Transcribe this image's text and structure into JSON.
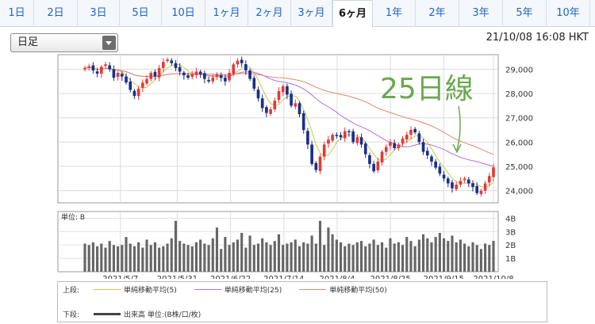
{
  "tabs": [
    {
      "label": "1日",
      "active": false
    },
    {
      "label": "2日",
      "active": false
    },
    {
      "label": "3日",
      "active": false
    },
    {
      "label": "5日",
      "active": false
    },
    {
      "label": "10日",
      "active": false
    },
    {
      "label": "1ヶ月",
      "active": false
    },
    {
      "label": "2ヶ月",
      "active": false
    },
    {
      "label": "3ヶ月",
      "active": false
    },
    {
      "label": "6ヶ月",
      "active": true
    },
    {
      "label": "1年",
      "active": false
    },
    {
      "label": "2年",
      "active": false
    },
    {
      "label": "3年",
      "active": false
    },
    {
      "label": "5年",
      "active": false
    },
    {
      "label": "10年",
      "active": false
    }
  ],
  "selector": {
    "value": "日足"
  },
  "timestamp": "21/10/08 16:08 HKT",
  "annotation": {
    "text": "25日線",
    "color": "#6aa84f"
  },
  "legend": {
    "upper_label": "上段:",
    "lower_label": "下段:",
    "items": [
      {
        "name": "単純移動平均(5)",
        "color": "#c8c850"
      },
      {
        "name": "単純移動平均(25)",
        "color": "#b56ee0"
      },
      {
        "name": "単純移動平均(50)",
        "color": "#e38a6c"
      }
    ],
    "volume_item": {
      "name": "出来高 単位:(B株/口/枚)",
      "color": "#444444"
    }
  },
  "chart_data": [
    {
      "type": "candlestick",
      "title": "",
      "y_ticks": [
        "29,000",
        "28,000",
        "27,000",
        "26,000",
        "25,000",
        "24,000"
      ],
      "ylim": [
        23500,
        29600
      ],
      "x_ticks": [
        "2021/5/7",
        "2021/5/31",
        "2021/6/22",
        "2021/7/14",
        "2021/8/4",
        "2021/8/25",
        "2021/9/15",
        "2021/10/8"
      ],
      "grid": true,
      "up_color": "#e53935",
      "down_color": "#1a2f8a",
      "close": [
        29050,
        29120,
        28950,
        28820,
        29100,
        29200,
        29000,
        28650,
        28850,
        28700,
        28450,
        28150,
        27900,
        28200,
        28450,
        28600,
        28850,
        28700,
        29050,
        29300,
        29400,
        29250,
        29050,
        28900,
        28750,
        28650,
        28800,
        28900,
        28800,
        28600,
        28500,
        28650,
        28800,
        28650,
        28500,
        28850,
        29200,
        29350,
        29250,
        28950,
        28600,
        28200,
        27800,
        27400,
        27200,
        27350,
        27700,
        28100,
        28300,
        27950,
        27500,
        27600,
        27150,
        26500,
        25900,
        25100,
        24850,
        25400,
        25900,
        26100,
        26300,
        26250,
        26200,
        26450,
        26400,
        26000,
        26200,
        25900,
        25500,
        25100,
        24800,
        25200,
        25600,
        25800,
        26000,
        25750,
        25900,
        26150,
        26300,
        26500,
        26400,
        26000,
        25600,
        25450,
        25200,
        24950,
        24700,
        24500,
        24300,
        24100,
        24250,
        24400,
        24500,
        24300,
        24150,
        23900,
        24000,
        24300,
        24600,
        24960
      ]
    },
    {
      "type": "bar",
      "title": "",
      "ylabel": "単位: B",
      "y_ticks": [
        "4B",
        "3B",
        "2B",
        "1B"
      ],
      "ylim": [
        0,
        4.5
      ],
      "values": [
        2.1,
        2.0,
        2.2,
        1.9,
        2.1,
        1.8,
        2.3,
        2.0,
        1.9,
        2.0,
        2.6,
        2.1,
        1.9,
        2.2,
        1.8,
        2.4,
        2.0,
        2.2,
        1.8,
        1.9,
        2.1,
        2.5,
        3.8,
        2.3,
        2.1,
        2.0,
        1.9,
        2.2,
        2.4,
        2.1,
        2.0,
        2.5,
        3.3,
        1.7,
        2.6,
        2.0,
        2.2,
        2.4,
        2.9,
        1.8,
        2.7,
        2.0,
        2.1,
        2.5,
        2.2,
        2.0,
        2.3,
        2.8,
        2.0,
        2.1,
        2.2,
        2.4,
        1.9,
        2.2,
        2.1,
        2.7,
        2.1,
        3.8,
        2.0,
        3.3,
        2.8,
        2.4,
        2.2,
        1.9,
        2.1,
        2.0,
        2.2,
        2.3,
        1.9,
        2.1,
        2.4,
        2.0,
        2.2,
        1.8,
        2.5,
        2.1,
        2.2,
        2.0,
        2.6,
        2.3,
        1.9,
        2.4,
        2.8,
        2.5,
        2.2,
        2.6,
        2.9,
        2.5,
        2.3,
        2.7,
        2.2,
        2.4,
        2.1,
        1.9,
        2.2,
        2.0,
        1.7,
        2.1,
        2.0,
        2.3
      ]
    }
  ]
}
